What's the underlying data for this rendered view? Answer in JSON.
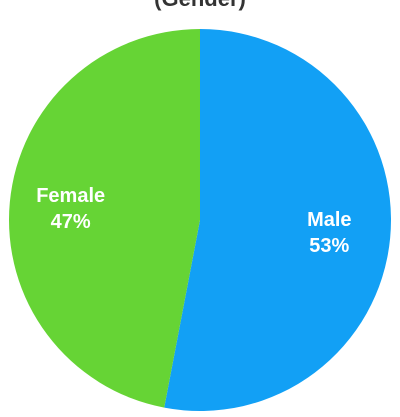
{
  "chart_data": {
    "type": "pie",
    "title": "(Gender)",
    "slices": [
      {
        "name": "Male",
        "value": 53,
        "label": "53%",
        "color": "#12a0f5"
      },
      {
        "name": "Female",
        "value": 47,
        "label": "47%",
        "color": "#66d435"
      }
    ],
    "start_angle_deg": 0,
    "direction": "clockwise",
    "legend": "none"
  }
}
